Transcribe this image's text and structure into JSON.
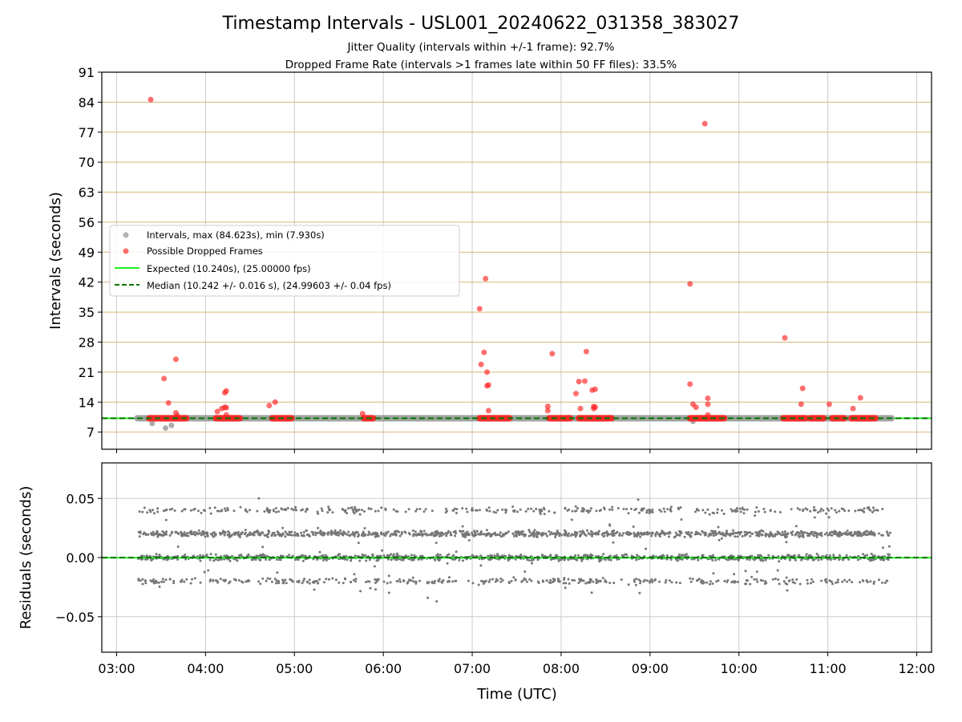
{
  "title": "Timestamp Intervals - USL001_20240622_031358_383027",
  "subtitle_lines": [
    "Jitter Quality (intervals within +/-1 frame): 92.7%",
    "Dropped Frame Rate (intervals >1 frames late within 50 FF files): 33.5%"
  ],
  "colors": {
    "intervals": "#999999",
    "dropped": "#ff2222",
    "expected": "#22ee22",
    "median": "#007700",
    "hgrid_top": "#d4b878",
    "grid": "#cccccc",
    "residuals": "#777777"
  },
  "legend": {
    "placement": "center-left",
    "entries": [
      "Intervals, max (84.623s), min (7.930s)",
      "Possible Dropped Frames",
      "Expected (10.240s), (25.00000 fps)",
      "Median (10.242 +/- 0.016 s), (24.99603 +/- 0.04 fps)"
    ]
  },
  "chart_data": [
    {
      "type": "scatter",
      "panel": "top",
      "ylabel": "Intervals (seconds)",
      "xlim": [
        "02:50",
        "12:10"
      ],
      "ylim": [
        3,
        91
      ],
      "yticks": [
        7,
        14,
        21,
        28,
        35,
        42,
        49,
        56,
        63,
        70,
        77,
        84,
        91
      ],
      "grid": true,
      "expected_value": 10.24,
      "median_value": 10.242,
      "intervals_band": {
        "x_range": [
          "03:14",
          "11:43"
        ],
        "y": 10.24
      },
      "intervals_outliers": [
        {
          "x": "03:24",
          "y": 9.0
        },
        {
          "x": "03:33",
          "y": 7.93
        },
        {
          "x": "03:37",
          "y": 8.6
        },
        {
          "x": "09:29",
          "y": 9.5
        }
      ],
      "dropped_segments": [
        [
          "03:22",
          "03:47"
        ],
        [
          "04:07",
          "04:23"
        ],
        [
          "04:45",
          "04:58"
        ],
        [
          "05:47",
          "05:53"
        ],
        [
          "07:05",
          "07:25"
        ],
        [
          "07:52",
          "08:06"
        ],
        [
          "08:12",
          "08:34"
        ],
        [
          "09:27",
          "09:50"
        ],
        [
          "10:30",
          "10:45"
        ],
        [
          "10:48",
          "10:57"
        ],
        [
          "11:03",
          "11:11"
        ],
        [
          "11:16",
          "11:32"
        ]
      ],
      "dropped_points": [
        {
          "x": "03:23",
          "y": 84.6
        },
        {
          "x": "03:32",
          "y": 19.5
        },
        {
          "x": "03:35",
          "y": 13.8
        },
        {
          "x": "03:40",
          "y": 24.0
        },
        {
          "x": "03:40",
          "y": 11.5
        },
        {
          "x": "03:41",
          "y": 10.8
        },
        {
          "x": "04:08",
          "y": 11.8
        },
        {
          "x": "04:11",
          "y": 12.5
        },
        {
          "x": "04:13",
          "y": 12.8
        },
        {
          "x": "04:13",
          "y": 16.2
        },
        {
          "x": "04:14",
          "y": 16.6
        },
        {
          "x": "04:14",
          "y": 12.7
        },
        {
          "x": "04:14",
          "y": 11.0
        },
        {
          "x": "04:43",
          "y": 13.2
        },
        {
          "x": "04:47",
          "y": 14.0
        },
        {
          "x": "05:46",
          "y": 11.3
        },
        {
          "x": "07:05",
          "y": 35.8
        },
        {
          "x": "07:06",
          "y": 22.8
        },
        {
          "x": "07:08",
          "y": 25.6
        },
        {
          "x": "07:09",
          "y": 42.8
        },
        {
          "x": "07:10",
          "y": 21.0
        },
        {
          "x": "07:10",
          "y": 17.8
        },
        {
          "x": "07:11",
          "y": 18.0
        },
        {
          "x": "07:11",
          "y": 12.0
        },
        {
          "x": "07:51",
          "y": 13.0
        },
        {
          "x": "07:51",
          "y": 12.0
        },
        {
          "x": "07:54",
          "y": 25.3
        },
        {
          "x": "08:10",
          "y": 16.0
        },
        {
          "x": "08:12",
          "y": 18.8
        },
        {
          "x": "08:13",
          "y": 12.5
        },
        {
          "x": "08:16",
          "y": 18.9
        },
        {
          "x": "08:17",
          "y": 25.8
        },
        {
          "x": "08:21",
          "y": 16.8
        },
        {
          "x": "08:22",
          "y": 13.0
        },
        {
          "x": "08:22",
          "y": 12.5
        },
        {
          "x": "08:23",
          "y": 17.0
        },
        {
          "x": "08:23",
          "y": 12.8
        },
        {
          "x": "09:27",
          "y": 41.6
        },
        {
          "x": "09:27",
          "y": 18.2
        },
        {
          "x": "09:29",
          "y": 13.5
        },
        {
          "x": "09:31",
          "y": 12.8
        },
        {
          "x": "09:37",
          "y": 79.0
        },
        {
          "x": "09:39",
          "y": 14.9
        },
        {
          "x": "09:39",
          "y": 13.5
        },
        {
          "x": "09:39",
          "y": 11.0
        },
        {
          "x": "10:31",
          "y": 29.0
        },
        {
          "x": "10:42",
          "y": 13.5
        },
        {
          "x": "10:43",
          "y": 17.2
        },
        {
          "x": "11:01",
          "y": 13.5
        },
        {
          "x": "11:17",
          "y": 12.5
        },
        {
          "x": "11:22",
          "y": 15.0
        }
      ]
    },
    {
      "type": "scatter",
      "panel": "bottom",
      "xlabel": "Time (UTC)",
      "ylabel": "Residuals (seconds)",
      "xlim": [
        "02:50",
        "12:10"
      ],
      "ylim": [
        -0.08,
        0.08
      ],
      "xticks": [
        "03:00",
        "04:00",
        "05:00",
        "06:00",
        "07:00",
        "08:00",
        "09:00",
        "10:00",
        "11:00",
        "12:00"
      ],
      "yticks": [
        "0.05",
        "0.00",
        "−0.05"
      ],
      "ytick_values": [
        0.05,
        0.0,
        -0.05
      ],
      "grid": true,
      "expected_residual": -0.0002,
      "median_residual": 0.0,
      "residual_bands": [
        {
          "y": 0.04,
          "share": 0.12
        },
        {
          "y": 0.02,
          "share": 0.38
        },
        {
          "y": 0.0,
          "share": 0.36
        },
        {
          "y": -0.02,
          "share": 0.14
        }
      ],
      "residual_range": [
        -0.037,
        0.05
      ]
    }
  ]
}
